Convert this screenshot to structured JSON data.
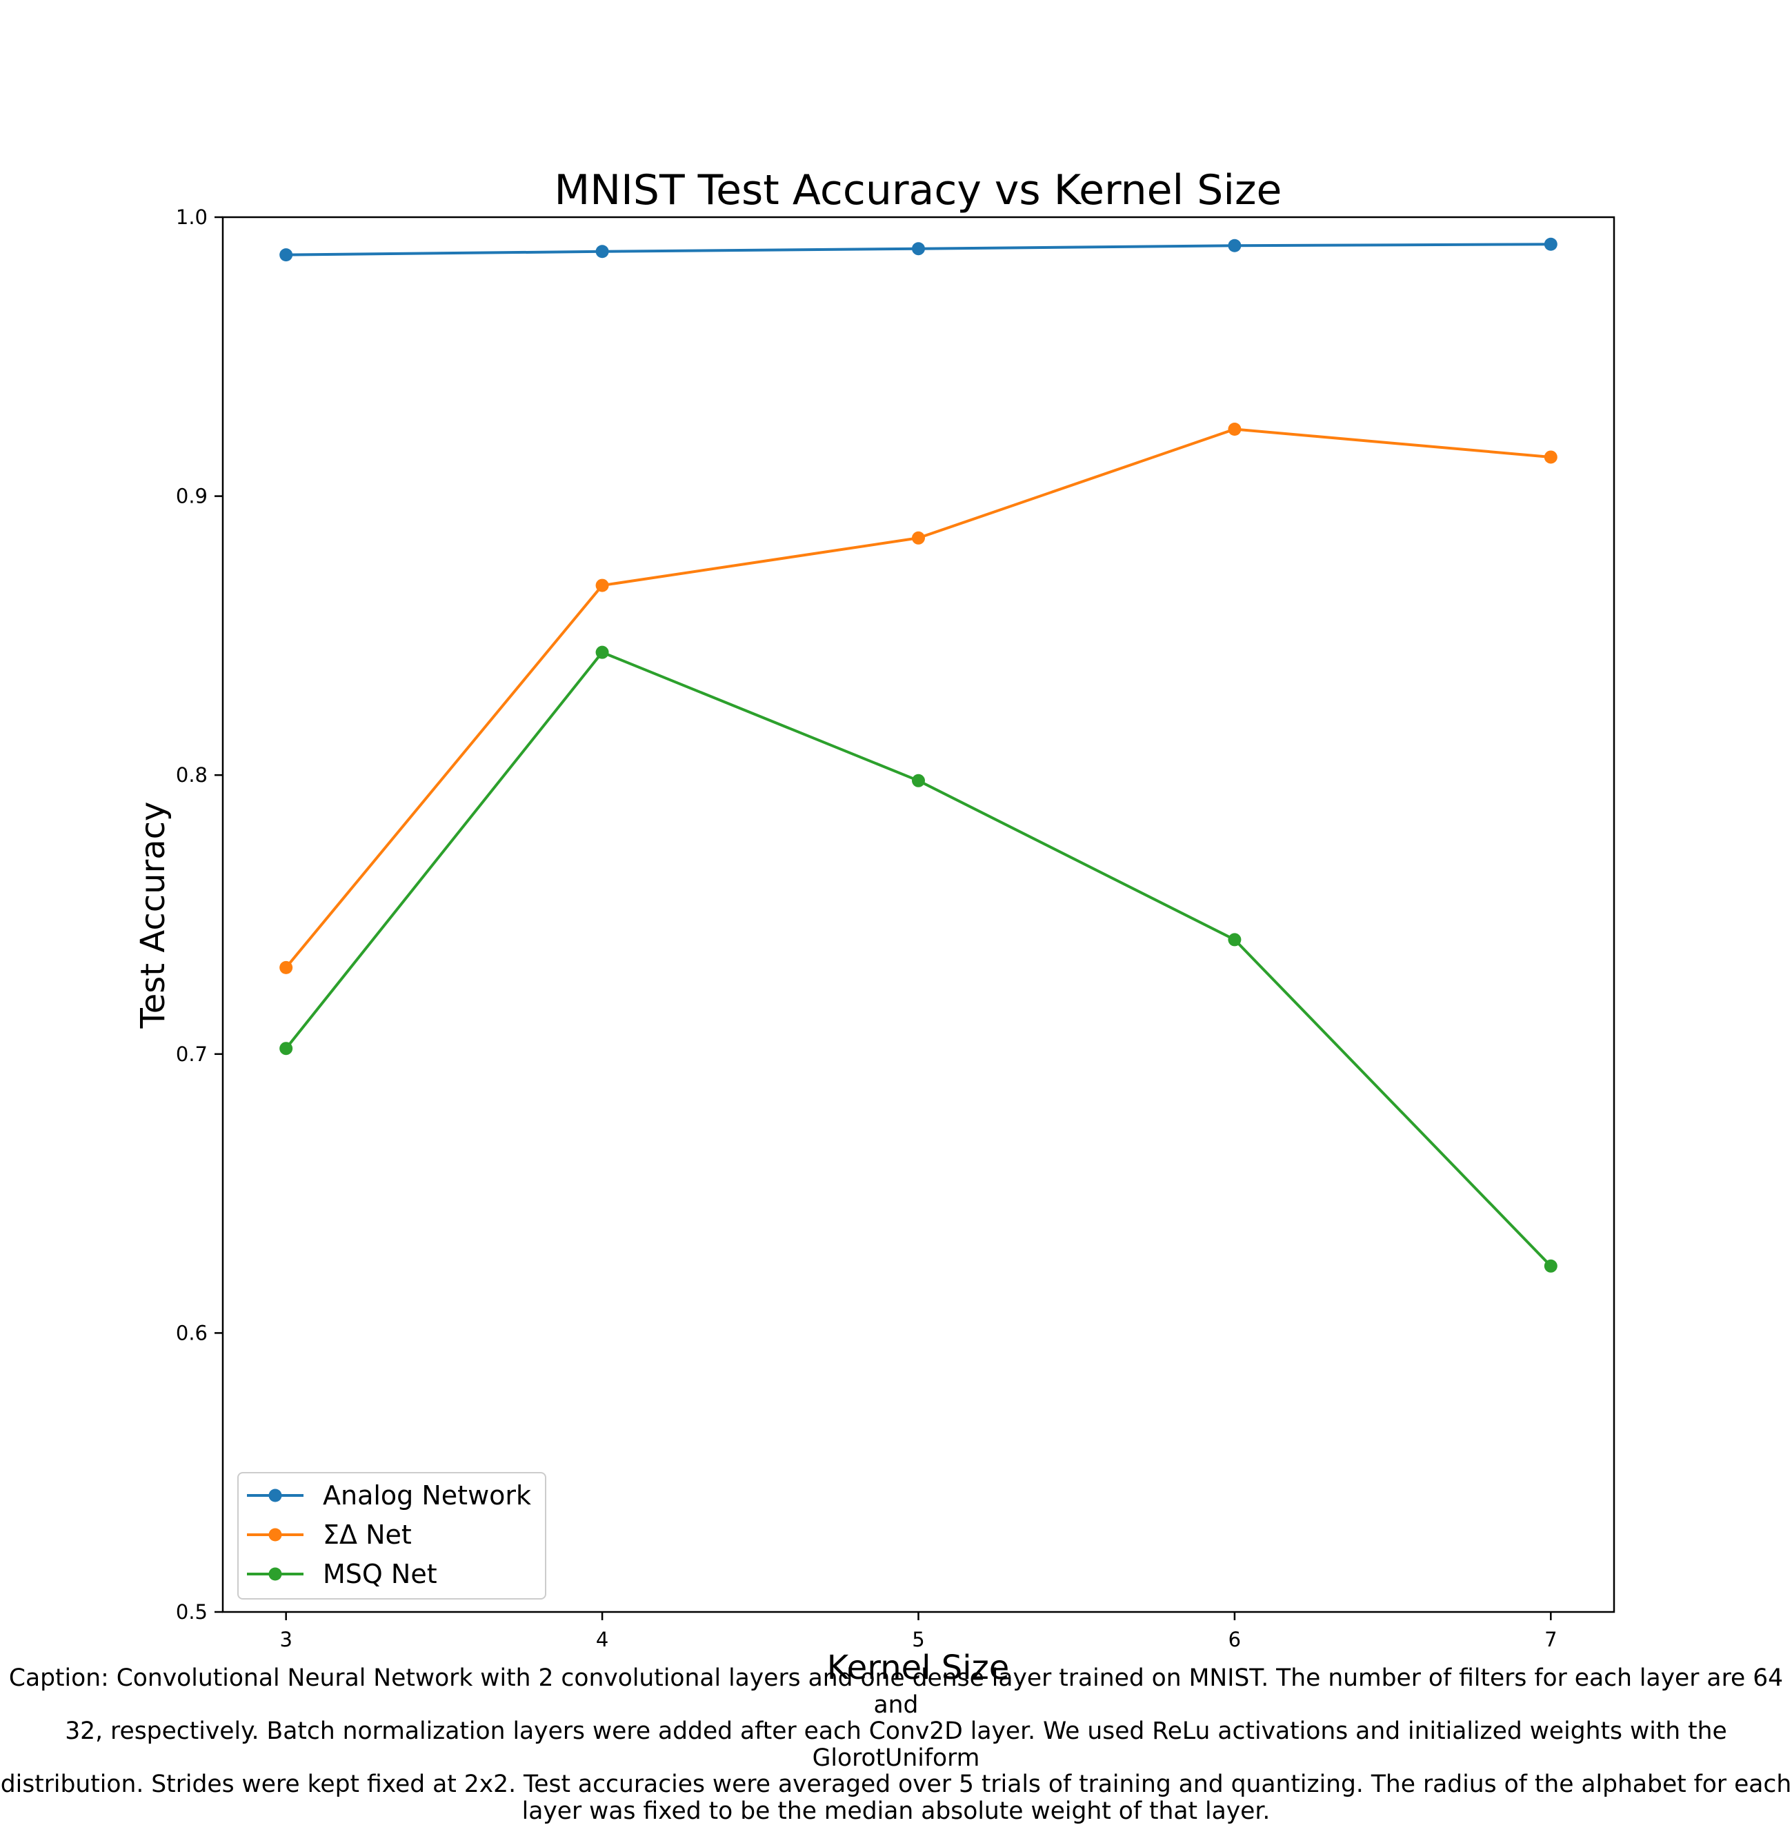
{
  "chart_data": {
    "type": "line",
    "title": "MNIST Test Accuracy vs Kernel Size",
    "xlabel": "Kernel Size",
    "ylabel": "Test Accuracy",
    "x": [
      3,
      4,
      5,
      6,
      7
    ],
    "xlim": [
      2.8,
      7.2
    ],
    "ylim": [
      0.5,
      1.0
    ],
    "xticks": [
      "3",
      "4",
      "5",
      "6",
      "7"
    ],
    "yticks": [
      "0.5",
      "0.6",
      "0.7",
      "0.8",
      "0.9",
      "1.0"
    ],
    "grid": false,
    "legend_position": "lower-left",
    "series": [
      {
        "name": "Analog Network",
        "color": "#1f77b4",
        "marker": "circle",
        "values": [
          0.9865,
          0.9877,
          0.9887,
          0.9898,
          0.9903
        ]
      },
      {
        "name": "ΣΔ Net",
        "color": "#ff7f0e",
        "marker": "circle",
        "values": [
          0.731,
          0.868,
          0.885,
          0.924,
          0.914
        ]
      },
      {
        "name": "MSQ Net",
        "color": "#2ca02c",
        "marker": "circle",
        "values": [
          0.702,
          0.844,
          0.798,
          0.741,
          0.624
        ]
      }
    ]
  },
  "caption": "Caption: Convolutional Neural Network with 2 convolutional layers and one dense layer trained on MNIST. The number of filters for each layer are 64 and\n32, respectively. Batch normalization layers were added after each Conv2D layer. We used ReLu activations and initialized weights with the GlorotUniform\ndistribution. Strides were kept fixed at 2x2. Test accuracies were averaged over 5 trials of training and quantizing. The radius of the alphabet for each\nlayer was fixed to be the median absolute weight of that layer."
}
